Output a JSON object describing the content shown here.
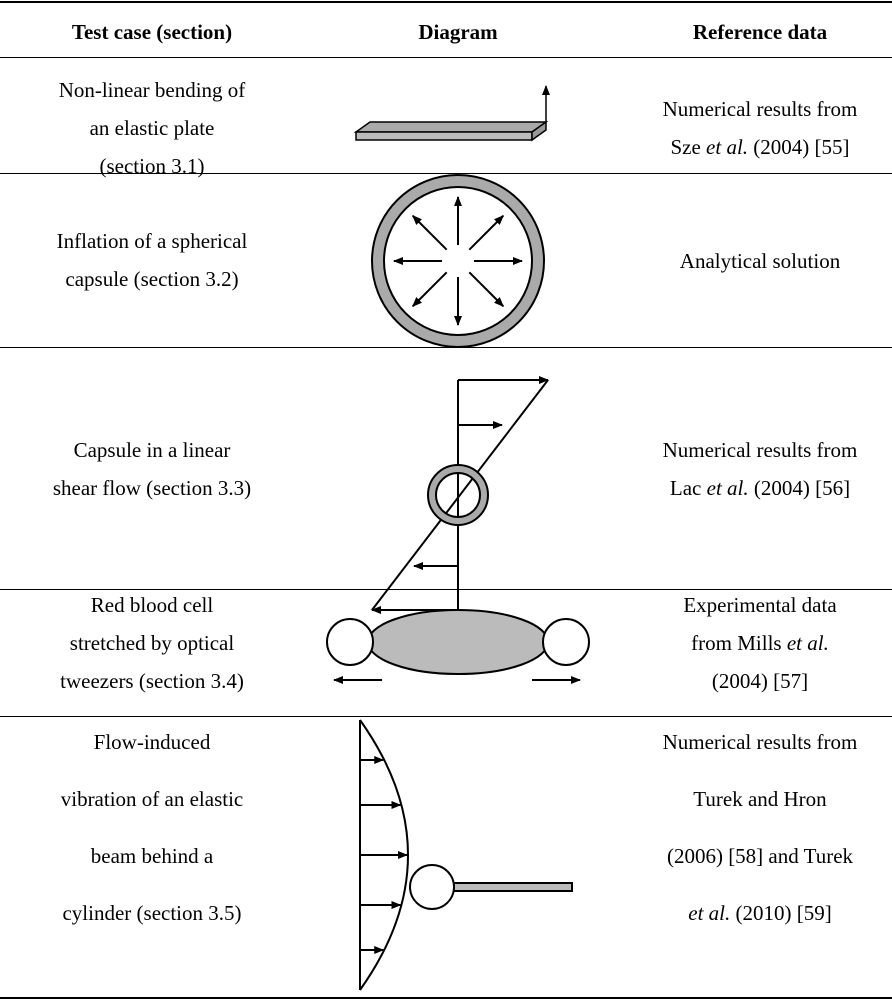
{
  "header": {
    "columns": [
      "Test case (section)",
      "Diagram",
      "Reference data"
    ]
  },
  "rows": [
    {
      "test_case": [
        "Non-linear bending of",
        "an elastic plate",
        "(section 3.1)"
      ],
      "reference": [
        [
          "Numerical results from"
        ],
        [
          "Sze ",
          {
            "text": "et al.",
            "italic": true
          },
          " (2004) [55]"
        ]
      ]
    },
    {
      "test_case": [
        "Inflation of a spherical",
        "capsule (section 3.2)"
      ],
      "reference": [
        [
          "Analytical solution"
        ]
      ]
    },
    {
      "test_case": [
        "Capsule in a linear",
        "shear flow (section 3.3)"
      ],
      "reference": [
        [
          "Numerical results from"
        ],
        [
          "Lac ",
          {
            "text": "et al.",
            "italic": true
          },
          " (2004) [56]"
        ]
      ]
    },
    {
      "test_case": [
        "Red blood cell",
        "stretched by optical",
        "tweezers (section 3.4)"
      ],
      "reference": [
        [
          "Experimental data"
        ],
        [
          "from Mills ",
          {
            "text": "et al.",
            "italic": true
          }
        ],
        [
          "(2004) [57]"
        ]
      ]
    },
    {
      "test_case": [
        "Flow-induced",
        "vibration of an elastic",
        "beam behind a",
        "cylinder (section 3.5)"
      ],
      "reference": [
        [
          "Numerical results from"
        ],
        [
          "Turek and Hron"
        ],
        [
          "(2006) [58] and Turek"
        ],
        [
          {
            "text": "et al.",
            "italic": true
          },
          " (2010) [59]"
        ]
      ]
    }
  ]
}
